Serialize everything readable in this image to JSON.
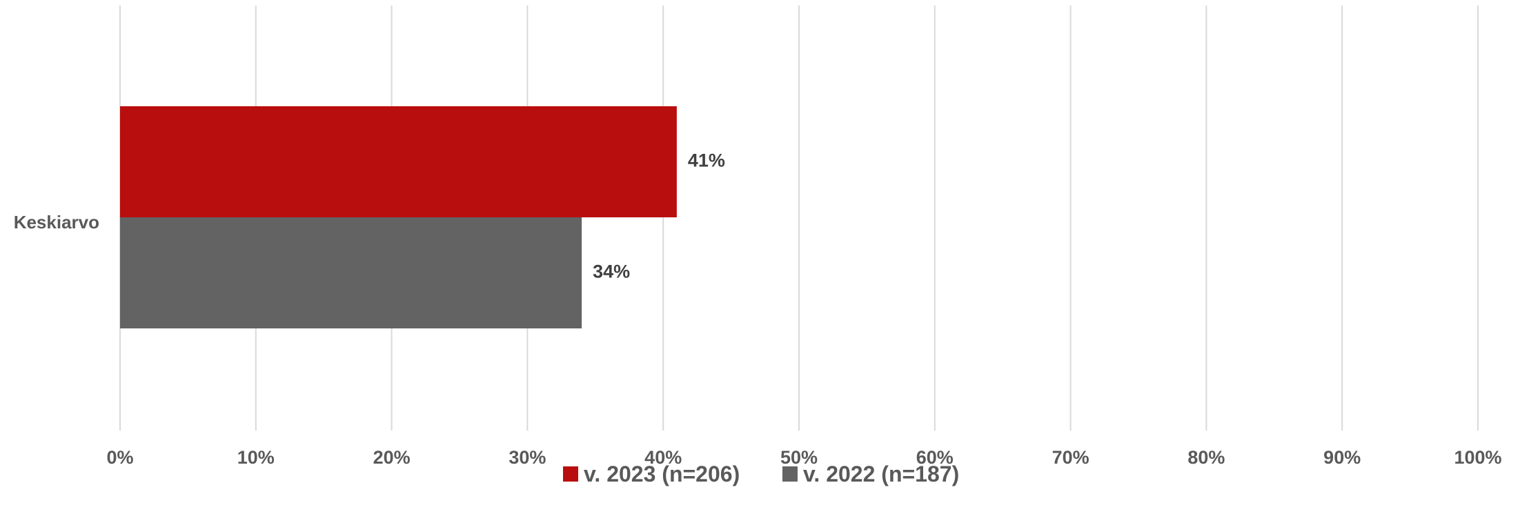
{
  "chart_data": {
    "type": "bar",
    "orientation": "horizontal",
    "categories": [
      "Keskiarvo"
    ],
    "series": [
      {
        "name": "v. 2023 (n=206)",
        "values": [
          41
        ],
        "labels": [
          "41%"
        ],
        "color": "#b90e0e"
      },
      {
        "name": "v. 2022 (n=187)",
        "values": [
          34
        ],
        "labels": [
          "34%"
        ],
        "color": "#636363"
      }
    ],
    "xlim": [
      0,
      100
    ],
    "xticks": [
      0,
      10,
      20,
      30,
      40,
      50,
      60,
      70,
      80,
      90,
      100
    ],
    "xtick_labels": [
      "0%",
      "10%",
      "20%",
      "30%",
      "40%",
      "50%",
      "60%",
      "70%",
      "80%",
      "90%",
      "100%"
    ],
    "grid": "vertical",
    "grid_color": "#d9d9d9",
    "legend_position": "bottom"
  }
}
